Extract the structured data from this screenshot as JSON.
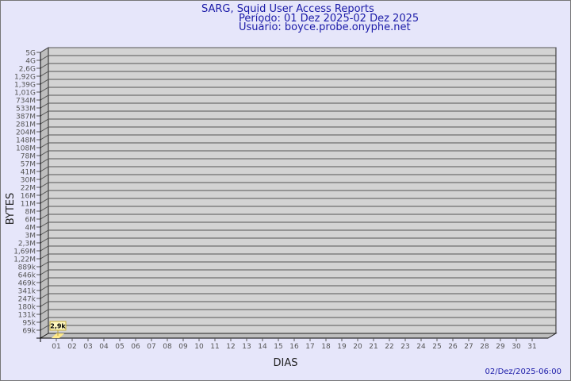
{
  "chart_data": {
    "type": "bar",
    "title": "SARG, Squid User Access Reports",
    "subtitle_period": "Período: 01 Dez 2025-02 Dez 2025",
    "subtitle_user": "Usuário: boyce.probe.onyphe.net",
    "xlabel": "DIAS",
    "ylabel": "BYTES",
    "timestamp": "02/Dez/2025-06:00",
    "y_scale": "log",
    "y_tick_labels": [
      "5G",
      "4G",
      "2,6G",
      "1,92G",
      "1,39G",
      "1,01G",
      "734M",
      "533M",
      "387M",
      "281M",
      "204M",
      "148M",
      "108M",
      "78M",
      "57M",
      "41M",
      "30M",
      "22M",
      "16M",
      "11M",
      "8M",
      "6M",
      "4M",
      "3M",
      "2,3M",
      "1,69M",
      "1,22M",
      "889k",
      "646k",
      "469k",
      "341k",
      "247k",
      "180k",
      "131k",
      "95k",
      "69k"
    ],
    "categories": [
      "01",
      "02",
      "03",
      "04",
      "05",
      "06",
      "07",
      "08",
      "09",
      "10",
      "11",
      "12",
      "13",
      "14",
      "15",
      "16",
      "17",
      "18",
      "19",
      "20",
      "21",
      "22",
      "23",
      "24",
      "25",
      "26",
      "27",
      "28",
      "29",
      "30",
      "31"
    ],
    "values": [
      {
        "day": "01",
        "bytes": 2900,
        "label": "2,9k"
      }
    ],
    "grid": true,
    "colors": {
      "wall": "#d3d3d3",
      "side": "#bebebe",
      "bar": "#ffe98a",
      "label_bg": "#fff8c0",
      "text": "#1a1aa8",
      "tick": "#555555"
    }
  }
}
